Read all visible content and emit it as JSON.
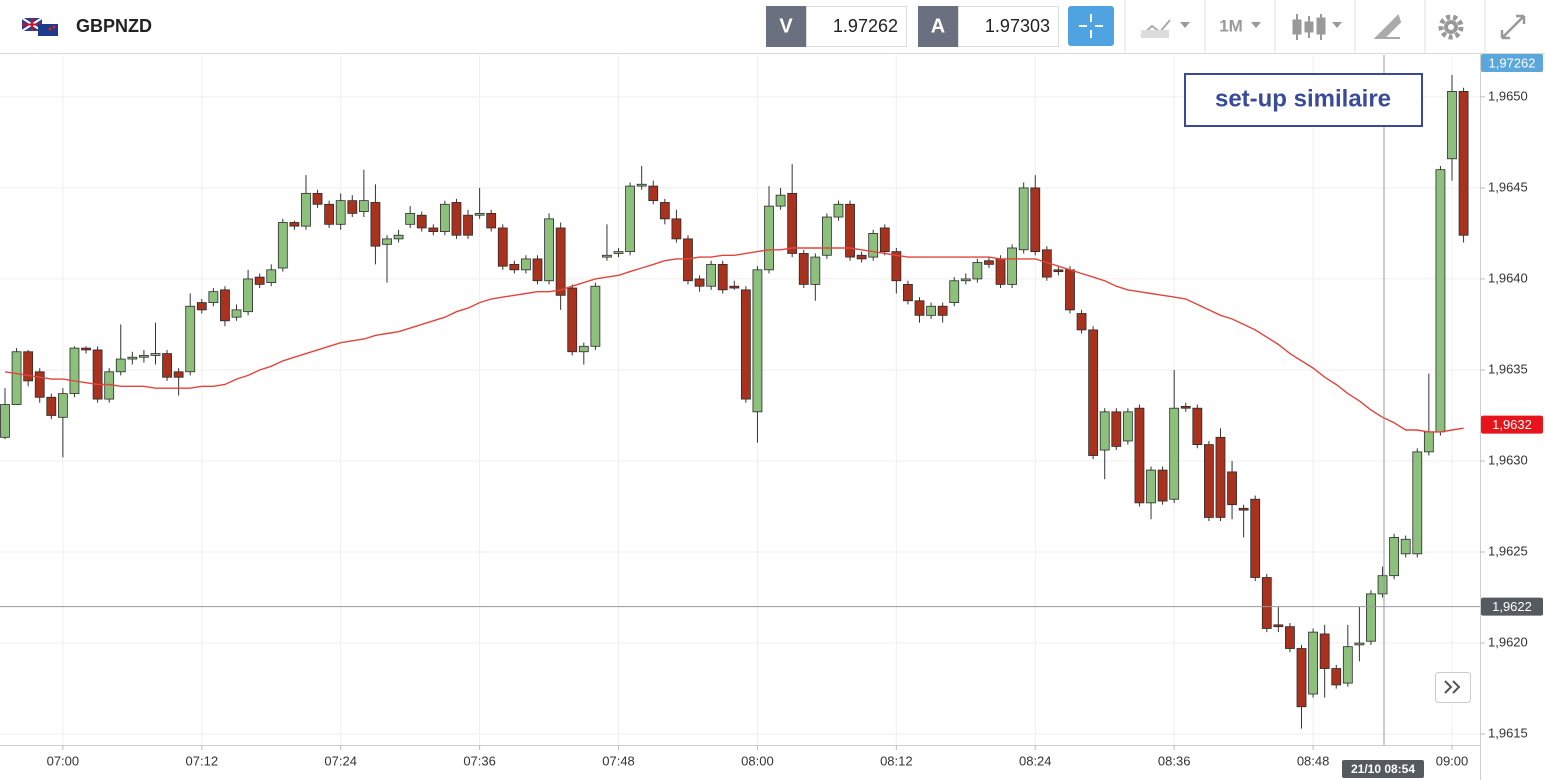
{
  "toolbar": {
    "symbol": "GBPNZD",
    "bid_letter": "V",
    "bid": "1.97262",
    "ask_letter": "A",
    "ask": "1.97303",
    "timeframe": "1M"
  },
  "chart_data": {
    "type": "candlestick",
    "categories": [
      null,
      null,
      null,
      null,
      null,
      "07:00",
      null,
      null,
      null,
      null,
      null,
      null,
      null,
      null,
      null,
      null,
      null,
      "07:12",
      null,
      null,
      null,
      null,
      null,
      null,
      null,
      null,
      null,
      null,
      null,
      "07:24",
      null,
      null,
      null,
      null,
      null,
      null,
      null,
      null,
      null,
      null,
      null,
      "07:36",
      null,
      null,
      null,
      null,
      null,
      null,
      null,
      null,
      null,
      null,
      null,
      "07:48",
      null,
      null,
      null,
      null,
      null,
      null,
      null,
      null,
      null,
      null,
      null,
      "08:00",
      null,
      null,
      null,
      null,
      null,
      null,
      null,
      null,
      null,
      null,
      null,
      "08:12",
      null,
      null,
      null,
      null,
      null,
      null,
      null,
      null,
      null,
      null,
      null,
      "08:24",
      null,
      null,
      null,
      null,
      null,
      null,
      null,
      null,
      null,
      null,
      null,
      "08:36",
      null,
      null,
      null,
      null,
      null,
      null,
      null,
      null,
      null,
      null,
      null,
      "08:48",
      null,
      null,
      null,
      null,
      null,
      null,
      null,
      null,
      null,
      null,
      null,
      "09:00",
      null
    ],
    "ohlc": [
      [
        1.96313,
        1.9634,
        1.96312,
        1.96331
      ],
      [
        1.96331,
        1.96362,
        1.96331,
        1.9636
      ],
      [
        1.9636,
        1.96361,
        1.96341,
        1.96344
      ],
      [
        1.96349,
        1.96351,
        1.96332,
        1.96335
      ],
      [
        1.96335,
        1.96337,
        1.96323,
        1.96325
      ],
      [
        1.96324,
        1.9634,
        1.96302,
        1.96337
      ],
      [
        1.96337,
        1.96363,
        1.96335,
        1.96362
      ],
      [
        1.96362,
        1.96363,
        1.96359,
        1.96361
      ],
      [
        1.96361,
        1.96363,
        1.96332,
        1.96334
      ],
      [
        1.96334,
        1.96351,
        1.96332,
        1.96349
      ],
      [
        1.96349,
        1.96375,
        1.96347,
        1.96356
      ],
      [
        1.96356,
        1.9636,
        1.96353,
        1.96357
      ],
      [
        1.96357,
        1.96361,
        1.96354,
        1.96358
      ],
      [
        1.96358,
        1.96376,
        1.96353,
        1.96359
      ],
      [
        1.96359,
        1.96361,
        1.96344,
        1.96346
      ],
      [
        1.96349,
        1.96351,
        1.96336,
        1.96346
      ],
      [
        1.96349,
        1.96392,
        1.96347,
        1.96385
      ],
      [
        1.96387,
        1.96389,
        1.96381,
        1.96383
      ],
      [
        1.96387,
        1.96395,
        1.96385,
        1.96393
      ],
      [
        1.96394,
        1.96396,
        1.96374,
        1.96377
      ],
      [
        1.96379,
        1.96386,
        1.96377,
        1.96383
      ],
      [
        1.96382,
        1.96405,
        1.9638,
        1.964
      ],
      [
        1.96401,
        1.96403,
        1.96395,
        1.96397
      ],
      [
        1.96398,
        1.96408,
        1.96396,
        1.96405
      ],
      [
        1.96406,
        1.96433,
        1.96404,
        1.96431
      ],
      [
        1.96431,
        1.96432,
        1.96427,
        1.96429
      ],
      [
        1.96429,
        1.96457,
        1.96427,
        1.96447
      ],
      [
        1.96447,
        1.96449,
        1.96439,
        1.96441
      ],
      [
        1.96441,
        1.96443,
        1.96428,
        1.9643
      ],
      [
        1.9643,
        1.96447,
        1.96427,
        1.96443
      ],
      [
        1.96443,
        1.96446,
        1.96434,
        1.96436
      ],
      [
        1.96437,
        1.9646,
        1.96434,
        1.96443
      ],
      [
        1.96442,
        1.96452,
        1.96408,
        1.96418
      ],
      [
        1.96419,
        1.96424,
        1.96398,
        1.96422
      ],
      [
        1.96422,
        1.96427,
        1.9642,
        1.96424
      ],
      [
        1.9643,
        1.9644,
        1.96428,
        1.96436
      ],
      [
        1.96435,
        1.96437,
        1.96426,
        1.96428
      ],
      [
        1.96428,
        1.9643,
        1.96424,
        1.96426
      ],
      [
        1.96426,
        1.96443,
        1.96424,
        1.96441
      ],
      [
        1.96442,
        1.96444,
        1.96422,
        1.96424
      ],
      [
        1.96435,
        1.96438,
        1.96422,
        1.96424
      ],
      [
        1.96435,
        1.9645,
        1.96433,
        1.96436
      ],
      [
        1.96436,
        1.96438,
        1.96426,
        1.96428
      ],
      [
        1.96428,
        1.9643,
        1.96405,
        1.96407
      ],
      [
        1.96408,
        1.9641,
        1.96403,
        1.96405
      ],
      [
        1.96405,
        1.96413,
        1.96403,
        1.96411
      ],
      [
        1.96411,
        1.96413,
        1.96397,
        1.96399
      ],
      [
        1.96399,
        1.96436,
        1.96397,
        1.96433
      ],
      [
        1.96428,
        1.96431,
        1.96383,
        1.96391
      ],
      [
        1.96395,
        1.96397,
        1.96358,
        1.9636
      ],
      [
        1.9636,
        1.96365,
        1.96353,
        1.96363
      ],
      [
        1.96363,
        1.96398,
        1.96361,
        1.96396
      ],
      [
        1.96412,
        1.9643,
        1.9641,
        1.96413
      ],
      [
        1.96414,
        1.96417,
        1.96412,
        1.96415
      ],
      [
        1.96415,
        1.96453,
        1.96413,
        1.96451
      ],
      [
        1.96451,
        1.96462,
        1.96449,
        1.96452
      ],
      [
        1.96451,
        1.96454,
        1.96441,
        1.96443
      ],
      [
        1.96442,
        1.96444,
        1.9643,
        1.96433
      ],
      [
        1.96433,
        1.96438,
        1.9642,
        1.96422
      ],
      [
        1.96422,
        1.96424,
        1.96397,
        1.96399
      ],
      [
        1.964,
        1.96402,
        1.96393,
        1.96396
      ],
      [
        1.96396,
        1.9641,
        1.96394,
        1.96408
      ],
      [
        1.96408,
        1.9641,
        1.96392,
        1.96394
      ],
      [
        1.96396,
        1.96399,
        1.96394,
        1.96395
      ],
      [
        1.96394,
        1.96396,
        1.96332,
        1.96334
      ],
      [
        1.96327,
        1.96407,
        1.9631,
        1.96405
      ],
      [
        1.96405,
        1.96451,
        1.96403,
        1.9644
      ],
      [
        1.9644,
        1.9645,
        1.96438,
        1.96446
      ],
      [
        1.96447,
        1.96463,
        1.96412,
        1.96414
      ],
      [
        1.96414,
        1.96416,
        1.96395,
        1.96397
      ],
      [
        1.96397,
        1.96414,
        1.96388,
        1.96412
      ],
      [
        1.96413,
        1.96436,
        1.96411,
        1.96434
      ],
      [
        1.96434,
        1.96443,
        1.96432,
        1.96441
      ],
      [
        1.96441,
        1.96443,
        1.9641,
        1.96412
      ],
      [
        1.96413,
        1.96415,
        1.96409,
        1.96411
      ],
      [
        1.96412,
        1.96427,
        1.9641,
        1.96425
      ],
      [
        1.96428,
        1.9643,
        1.96413,
        1.96415
      ],
      [
        1.96415,
        1.96417,
        1.96392,
        1.96399
      ],
      [
        1.96397,
        1.96399,
        1.96386,
        1.96388
      ],
      [
        1.96388,
        1.9639,
        1.96376,
        1.9638
      ],
      [
        1.9638,
        1.96387,
        1.96378,
        1.96385
      ],
      [
        1.96385,
        1.96387,
        1.96376,
        1.9638
      ],
      [
        1.96387,
        1.96401,
        1.96385,
        1.96399
      ],
      [
        1.96399,
        1.96403,
        1.96397,
        1.964
      ],
      [
        1.964,
        1.96411,
        1.96398,
        1.96409
      ],
      [
        1.9641,
        1.96412,
        1.96406,
        1.96408
      ],
      [
        1.96411,
        1.96413,
        1.96395,
        1.96397
      ],
      [
        1.96397,
        1.96419,
        1.96395,
        1.96417
      ],
      [
        1.96416,
        1.96453,
        1.96414,
        1.9645
      ],
      [
        1.9645,
        1.96457,
        1.96413,
        1.96415
      ],
      [
        1.96416,
        1.96418,
        1.96399,
        1.96401
      ],
      [
        1.96405,
        1.96407,
        1.96402,
        1.96404
      ],
      [
        1.96405,
        1.96407,
        1.96381,
        1.96383
      ],
      [
        1.96381,
        1.96383,
        1.9637,
        1.96372
      ],
      [
        1.96372,
        1.96374,
        1.96301,
        1.96303
      ],
      [
        1.96306,
        1.96329,
        1.9629,
        1.96327
      ],
      [
        1.96327,
        1.96329,
        1.96306,
        1.96308
      ],
      [
        1.96311,
        1.96329,
        1.96309,
        1.96327
      ],
      [
        1.96329,
        1.96331,
        1.96275,
        1.96277
      ],
      [
        1.96277,
        1.96297,
        1.96268,
        1.96295
      ],
      [
        1.96295,
        1.96297,
        1.96276,
        1.96278
      ],
      [
        1.96279,
        1.9635,
        1.96277,
        1.96329
      ],
      [
        1.9633,
        1.96332,
        1.96327,
        1.96329
      ],
      [
        1.96329,
        1.96331,
        1.96307,
        1.96309
      ],
      [
        1.96309,
        1.96311,
        1.96267,
        1.96269
      ],
      [
        1.96313,
        1.96318,
        1.96267,
        1.96269
      ],
      [
        1.96294,
        1.963,
        1.96268,
        1.96276
      ],
      [
        1.96274,
        1.96276,
        1.96258,
        1.96273
      ],
      [
        1.96279,
        1.96281,
        1.96234,
        1.96236
      ],
      [
        1.96236,
        1.96238,
        1.96206,
        1.96208
      ],
      [
        1.9621,
        1.9622,
        1.96206,
        1.96209
      ],
      [
        1.96209,
        1.96211,
        1.96195,
        1.96197
      ],
      [
        1.96197,
        1.96199,
        1.96153,
        1.96165
      ],
      [
        1.96172,
        1.96208,
        1.9617,
        1.96206
      ],
      [
        1.96205,
        1.9621,
        1.9617,
        1.96186
      ],
      [
        1.96186,
        1.96188,
        1.96175,
        1.96177
      ],
      [
        1.96178,
        1.9621,
        1.96176,
        1.96198
      ],
      [
        1.96199,
        1.9622,
        1.9619,
        1.962
      ],
      [
        1.96201,
        1.96229,
        1.96199,
        1.96227
      ],
      [
        1.96227,
        1.96242,
        1.96225,
        1.96237
      ],
      [
        1.96237,
        1.9626,
        1.96235,
        1.96258
      ],
      [
        1.96249,
        1.96259,
        1.96247,
        1.96257
      ],
      [
        1.96249,
        1.96307,
        1.96247,
        1.96305
      ],
      [
        1.96305,
        1.96348,
        1.96303,
        1.96316
      ],
      [
        1.96316,
        1.96462,
        1.96314,
        1.9646
      ],
      [
        1.96466,
        1.96512,
        1.96454,
        1.96503
      ],
      [
        1.96503,
        1.96505,
        1.9642,
        1.96424
      ]
    ],
    "up_color": "#8dc07d",
    "down_color": "#a8321e",
    "ma": {
      "color": "#e0463c",
      "values": [
        1.96349,
        1.96348,
        1.96347,
        1.96346,
        1.96345,
        1.96345,
        1.96344,
        1.96343,
        1.96342,
        1.96342,
        1.96341,
        1.96341,
        1.96341,
        1.9634,
        1.9634,
        1.9634,
        1.9634,
        1.96341,
        1.96341,
        1.96342,
        1.96345,
        1.96347,
        1.9635,
        1.96352,
        1.96355,
        1.96357,
        1.96359,
        1.96361,
        1.96363,
        1.96365,
        1.96366,
        1.96367,
        1.96369,
        1.9637,
        1.96371,
        1.96373,
        1.96375,
        1.96377,
        1.96379,
        1.96382,
        1.96384,
        1.96387,
        1.96389,
        1.9639,
        1.96391,
        1.96392,
        1.96393,
        1.96393,
        1.96394,
        1.96396,
        1.96398,
        1.964,
        1.96401,
        1.96402,
        1.96404,
        1.96406,
        1.96408,
        1.9641,
        1.96411,
        1.96411,
        1.96412,
        1.96412,
        1.96413,
        1.96413,
        1.96414,
        1.96415,
        1.96416,
        1.96416,
        1.96417,
        1.96417,
        1.96417,
        1.96417,
        1.96417,
        1.96417,
        1.96416,
        1.96415,
        1.96414,
        1.96413,
        1.96412,
        1.96412,
        1.96412,
        1.96412,
        1.96412,
        1.96412,
        1.96412,
        1.96412,
        1.96411,
        1.96411,
        1.96411,
        1.96411,
        1.96409,
        1.96407,
        1.96405,
        1.96403,
        1.96401,
        1.96399,
        1.96396,
        1.96394,
        1.96393,
        1.96392,
        1.96391,
        1.9639,
        1.96389,
        1.96386,
        1.96383,
        1.9638,
        1.96378,
        1.96375,
        1.96372,
        1.96368,
        1.96364,
        1.96359,
        1.96355,
        1.96351,
        1.96346,
        1.96342,
        1.96337,
        1.96333,
        1.96328,
        1.96324,
        1.96321,
        1.96317,
        1.96317,
        1.96316,
        1.96316,
        1.96317,
        1.96318
      ]
    },
    "ylim": [
      1.96144,
      1.96523
    ],
    "yticks": [
      {
        "value": 1.9615,
        "label": "1,9615"
      },
      {
        "value": 1.962,
        "label": "1,9620"
      },
      {
        "value": 1.9625,
        "label": "1,9625"
      },
      {
        "value": 1.963,
        "label": "1,9630"
      },
      {
        "value": 1.9635,
        "label": "1,9635"
      },
      {
        "value": 1.964,
        "label": "1,9640"
      },
      {
        "value": 1.9645,
        "label": "1,9645"
      },
      {
        "value": 1.965,
        "label": "1,9650"
      }
    ],
    "grid": true,
    "price_tags": [
      {
        "value": 1.9632,
        "label": "1,9632",
        "color": "#e8141c"
      }
    ],
    "crosshair": {
      "value": 1.9622,
      "label": "1,9622",
      "time": "21/10 08:54",
      "color": "#555a60"
    },
    "last_price_tag": {
      "label": "1,97262",
      "color": "#5ba7db"
    },
    "annotation": "set-up similaire"
  }
}
